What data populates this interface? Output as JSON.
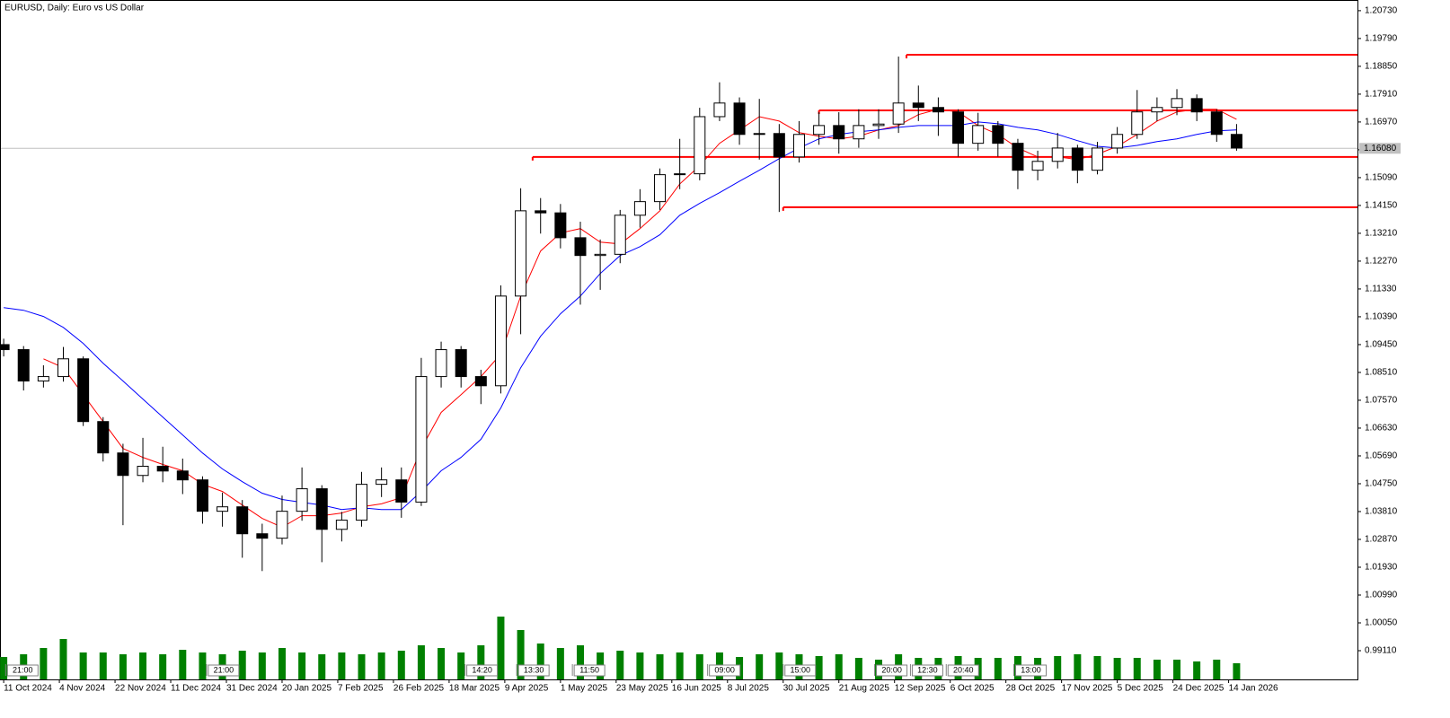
{
  "chart_data": {
    "type": "candlestick",
    "title": "EURUSD, Daily:  Euro vs US Dollar",
    "x": [
      0,
      5,
      10,
      15,
      20,
      25,
      30,
      35,
      40,
      45,
      50,
      55,
      60,
      65,
      70,
      75,
      80,
      85,
      90,
      95,
      100,
      105,
      110,
      115,
      120,
      125,
      130,
      135,
      140,
      145,
      150,
      155,
      160,
      165,
      170,
      175,
      180,
      185,
      190,
      195,
      200,
      205,
      210,
      215,
      220,
      225,
      230,
      235,
      240,
      245,
      250,
      255,
      260,
      265,
      270,
      275,
      280,
      285,
      290,
      295,
      300,
      305,
      310
    ],
    "candles": [
      [
        1.0945,
        1.0965,
        1.0905,
        1.0928
      ],
      [
        1.0928,
        1.094,
        1.079,
        1.0822
      ],
      [
        1.0822,
        1.0875,
        1.08,
        1.0837
      ],
      [
        1.0837,
        1.0937,
        1.082,
        1.0897
      ],
      [
        1.0897,
        1.0905,
        1.067,
        1.0685
      ],
      [
        1.0685,
        1.07,
        1.055,
        1.0579
      ],
      [
        1.0579,
        1.061,
        1.0335,
        1.0503
      ],
      [
        1.0503,
        1.063,
        1.048,
        1.0534
      ],
      [
        1.0534,
        1.06,
        1.048,
        1.0518
      ],
      [
        1.0518,
        1.056,
        1.044,
        1.0488
      ],
      [
        1.0488,
        1.05,
        1.034,
        1.0382
      ],
      [
        1.0382,
        1.0445,
        1.033,
        1.0397
      ],
      [
        1.0397,
        1.042,
        1.0225,
        1.0306
      ],
      [
        1.0306,
        1.034,
        1.018,
        1.0291
      ],
      [
        1.0291,
        1.0435,
        1.027,
        1.0382
      ],
      [
        1.0382,
        1.053,
        1.035,
        1.0458
      ],
      [
        1.0458,
        1.047,
        1.021,
        1.0321
      ],
      [
        1.0321,
        1.038,
        1.028,
        1.0352
      ],
      [
        1.0352,
        1.0515,
        1.033,
        1.0473
      ],
      [
        1.0473,
        1.053,
        1.043,
        1.0488
      ],
      [
        1.0488,
        1.053,
        1.036,
        1.0413
      ],
      [
        1.0413,
        1.09,
        1.04,
        1.0837
      ],
      [
        1.0837,
        1.0955,
        1.08,
        1.0928
      ],
      [
        1.0928,
        1.094,
        1.08,
        1.0837
      ],
      [
        1.0837,
        1.086,
        1.0744,
        1.0806
      ],
      [
        1.0806,
        1.1145,
        1.078,
        1.1109
      ],
      [
        1.1109,
        1.1473,
        1.098,
        1.1397
      ],
      [
        1.1397,
        1.144,
        1.132,
        1.139
      ],
      [
        1.139,
        1.142,
        1.127,
        1.1306
      ],
      [
        1.1306,
        1.136,
        1.108,
        1.1246
      ],
      [
        1.1246,
        1.13,
        1.113,
        1.125
      ],
      [
        1.125,
        1.14,
        1.122,
        1.1382
      ],
      [
        1.1382,
        1.147,
        1.134,
        1.1428
      ],
      [
        1.1428,
        1.154,
        1.14,
        1.1519
      ],
      [
        1.1519,
        1.164,
        1.147,
        1.1522
      ],
      [
        1.1522,
        1.1745,
        1.15,
        1.1715
      ],
      [
        1.1715,
        1.1831,
        1.17,
        1.1761
      ],
      [
        1.1761,
        1.178,
        1.162,
        1.1655
      ],
      [
        1.1655,
        1.1775,
        1.157,
        1.1658
      ],
      [
        1.1658,
        1.169,
        1.1393,
        1.1579
      ],
      [
        1.1579,
        1.17,
        1.156,
        1.1655
      ],
      [
        1.1655,
        1.173,
        1.162,
        1.1685
      ],
      [
        1.1685,
        1.173,
        1.159,
        1.164
      ],
      [
        1.164,
        1.174,
        1.161,
        1.1685
      ],
      [
        1.1685,
        1.174,
        1.164,
        1.169
      ],
      [
        1.169,
        1.1918,
        1.166,
        1.1761
      ],
      [
        1.1761,
        1.182,
        1.17,
        1.1746
      ],
      [
        1.1746,
        1.178,
        1.165,
        1.1731
      ],
      [
        1.1731,
        1.174,
        1.158,
        1.1625
      ],
      [
        1.1625,
        1.1728,
        1.16,
        1.1685
      ],
      [
        1.1685,
        1.17,
        1.158,
        1.1625
      ],
      [
        1.1625,
        1.164,
        1.147,
        1.1534
      ],
      [
        1.1534,
        1.16,
        1.15,
        1.1564
      ],
      [
        1.1564,
        1.166,
        1.154,
        1.1609
      ],
      [
        1.1609,
        1.162,
        1.149,
        1.1534
      ],
      [
        1.1534,
        1.163,
        1.152,
        1.1609
      ],
      [
        1.1609,
        1.168,
        1.159,
        1.1655
      ],
      [
        1.1655,
        1.1805,
        1.164,
        1.1731
      ],
      [
        1.1731,
        1.178,
        1.17,
        1.1746
      ],
      [
        1.1746,
        1.1808,
        1.172,
        1.1776
      ],
      [
        1.1776,
        1.179,
        1.17,
        1.1731
      ],
      [
        1.1731,
        1.174,
        1.163,
        1.1655
      ],
      [
        1.1655,
        1.169,
        1.16,
        1.1609
      ]
    ],
    "volumes": [
      50000,
      56000,
      70000,
      90000,
      60000,
      60000,
      56000,
      60000,
      56000,
      66000,
      60000,
      56000,
      64000,
      60000,
      70000,
      60000,
      56000,
      60000,
      56000,
      60000,
      64000,
      76000,
      70000,
      60000,
      76000,
      140000,
      110000,
      80000,
      70000,
      76000,
      60000,
      64000,
      60000,
      56000,
      60000,
      56000,
      60000,
      50000,
      56000,
      60000,
      56000,
      52000,
      56000,
      48000,
      44000,
      56000,
      48000,
      48000,
      52000,
      48000,
      48000,
      52000,
      48000,
      52000,
      56000,
      52000,
      48000,
      48000,
      44000,
      44000,
      40000,
      44000,
      36000
    ],
    "volume_color": "#008000",
    "moving_averages": [
      {
        "color": "#ff0000",
        "values": [
          null,
          null,
          1.0897,
          1.0867,
          1.0776,
          1.0685,
          1.0594,
          1.0564,
          1.054,
          1.0519,
          1.0473,
          1.0449,
          1.0403,
          1.0358,
          1.0328,
          1.0367,
          1.0367,
          1.0376,
          1.0397,
          1.0407,
          1.0428,
          1.0594,
          1.0716,
          1.0776,
          1.0837,
          1.0913,
          1.1109,
          1.1261,
          1.1322,
          1.1337,
          1.1291,
          1.1285,
          1.1337,
          1.1397,
          1.1488,
          1.1549,
          1.1625,
          1.167,
          1.1715,
          1.17,
          1.1661,
          1.1649,
          1.164,
          1.1649,
          1.167,
          1.1685,
          1.1722,
          1.174,
          1.1731,
          1.1685,
          1.1655,
          1.1609,
          1.1579,
          1.1579,
          1.157,
          1.1588,
          1.1615,
          1.1655,
          1.17,
          1.1731,
          1.174,
          1.174,
          1.1706
        ]
      },
      {
        "color": "#0000ff",
        "values": [
          1.107,
          1.1061,
          1.104,
          1.1003,
          1.0949,
          1.0882,
          1.0822,
          1.0761,
          1.07,
          1.064,
          1.0579,
          1.0525,
          1.0482,
          1.0443,
          1.0422,
          1.0412,
          1.0403,
          1.0388,
          1.0394,
          1.0388,
          1.0388,
          1.0449,
          1.0519,
          1.0564,
          1.0625,
          1.0731,
          1.0867,
          1.0973,
          1.1049,
          1.1109,
          1.1185,
          1.1246,
          1.1276,
          1.1316,
          1.1382,
          1.1422,
          1.1458,
          1.1497,
          1.1534,
          1.1573,
          1.1609,
          1.164,
          1.1655,
          1.1664,
          1.167,
          1.1679,
          1.1685,
          1.1685,
          1.1685,
          1.1697,
          1.1691,
          1.1679,
          1.167,
          1.1655,
          1.1634,
          1.1615,
          1.1609,
          1.1618,
          1.1631,
          1.164,
          1.1655,
          1.1667,
          1.167
        ]
      }
    ],
    "levels": [
      {
        "value": 1.1924,
        "start": 227,
        "color": "#ff0000"
      },
      {
        "value": 1.1736,
        "start": 205,
        "color": "#ff0000"
      },
      {
        "value": 1.1579,
        "start": 133,
        "color": "#ff0000"
      },
      {
        "value": 1.1409,
        "start": 196,
        "color": "#ff0000"
      }
    ],
    "current_price": {
      "value": 1.1608,
      "label": "1.16080"
    },
    "annotations": [
      {
        "x": 0.5,
        "text": "21:00"
      },
      {
        "x": 51,
        "text": "21:00"
      },
      {
        "x": 116,
        "text": "14:20"
      },
      {
        "x": 129,
        "text": "13:30"
      },
      {
        "x": 143,
        "text": "11:50"
      },
      {
        "x": 177,
        "text": "09:00"
      },
      {
        "x": 196,
        "text": "15:00"
      },
      {
        "x": 219,
        "text": "20:00"
      },
      {
        "x": 228,
        "text": "12:30"
      },
      {
        "x": 237,
        "text": "20:40"
      },
      {
        "x": 254,
        "text": "13:00"
      }
    ],
    "xlim": [
      -0.7,
      340.4
    ],
    "xticks": [
      {
        "value": 0,
        "label": "11 Oct 2024"
      },
      {
        "value": 14,
        "label": "4 Nov 2024"
      },
      {
        "value": 28,
        "label": "22 Nov 2024"
      },
      {
        "value": 42,
        "label": "11 Dec 2024"
      },
      {
        "value": 56,
        "label": "31 Dec 2024"
      },
      {
        "value": 70,
        "label": "20 Jan 2025"
      },
      {
        "value": 84,
        "label": "7 Feb 2025"
      },
      {
        "value": 98,
        "label": "26 Feb 2025"
      },
      {
        "value": 112,
        "label": "18 Mar 2025"
      },
      {
        "value": 126,
        "label": "9 Apr 2025"
      },
      {
        "value": 140,
        "label": "1 May 2025"
      },
      {
        "value": 154,
        "label": "23 May 2025"
      },
      {
        "value": 168,
        "label": "16 Jun 2025"
      },
      {
        "value": 182,
        "label": "8 Jul 2025"
      },
      {
        "value": 196,
        "label": "30 Jul 2025"
      },
      {
        "value": 210,
        "label": "21 Aug 2025"
      },
      {
        "value": 224,
        "label": "12 Sep 2025"
      },
      {
        "value": 238,
        "label": "6 Oct 2025"
      },
      {
        "value": 252,
        "label": "28 Oct 2025"
      },
      {
        "value": 266,
        "label": "17 Nov 2025"
      },
      {
        "value": 280,
        "label": "5 Dec 2025"
      },
      {
        "value": 294,
        "label": "24 Dec 2025"
      },
      {
        "value": 308,
        "label": "14 Jan 2026"
      }
    ],
    "ylim": [
      0.9814,
      1.2103
    ],
    "yticks": [
      {
        "value": 1.2073,
        "label": "1.20730"
      },
      {
        "value": 1.1979,
        "label": "1.19790"
      },
      {
        "value": 1.1885,
        "label": "1.18850"
      },
      {
        "value": 1.1791,
        "label": "1.17910"
      },
      {
        "value": 1.1697,
        "label": "1.16970"
      },
      {
        "value": 1.1603,
        "label": "1.16030"
      },
      {
        "value": 1.1509,
        "label": "1.15090"
      },
      {
        "value": 1.1415,
        "label": "1.14150"
      },
      {
        "value": 1.1321,
        "label": "1.13210"
      },
      {
        "value": 1.1227,
        "label": "1.12270"
      },
      {
        "value": 1.1133,
        "label": "1.11330"
      },
      {
        "value": 1.1039,
        "label": "1.10390"
      },
      {
        "value": 1.0945,
        "label": "1.09450"
      },
      {
        "value": 1.0851,
        "label": "1.08510"
      },
      {
        "value": 1.0757,
        "label": "1.07570"
      },
      {
        "value": 1.0663,
        "label": "1.06630"
      },
      {
        "value": 1.0569,
        "label": "1.05690"
      },
      {
        "value": 1.0475,
        "label": "1.04750"
      },
      {
        "value": 1.0381,
        "label": "1.03810"
      },
      {
        "value": 1.0287,
        "label": "1.02870"
      },
      {
        "value": 1.0193,
        "label": "1.01930"
      },
      {
        "value": 1.0099,
        "label": "1.00990"
      },
      {
        "value": 1.0005,
        "label": "1.00050"
      },
      {
        "value": 0.9911,
        "label": "0.99110"
      }
    ],
    "grid": false
  }
}
